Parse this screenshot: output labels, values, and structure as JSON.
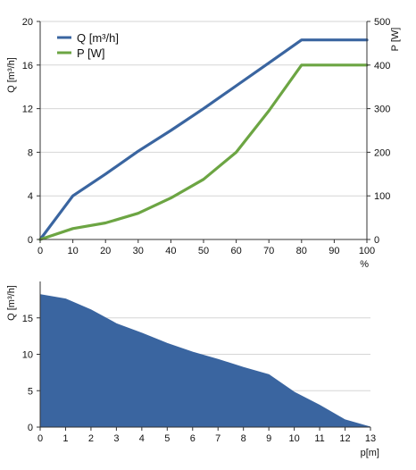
{
  "chart_data": [
    {
      "type": "line",
      "x": [
        0,
        10,
        20,
        30,
        40,
        50,
        60,
        70,
        80,
        90,
        100
      ],
      "xlim": [
        0,
        100
      ],
      "xticks": [
        "0",
        "10",
        "20",
        "30",
        "40",
        "50",
        "60",
        "70",
        "80",
        "90",
        "100"
      ],
      "xlabel": "%",
      "ylabel": "Q [m³/h]",
      "ylim": [
        0,
        20
      ],
      "yticks": [
        "0",
        "4",
        "8",
        "12",
        "16",
        "20"
      ],
      "y2label": "P [W]",
      "y2lim": [
        0,
        500
      ],
      "y2ticks": [
        "0",
        "100",
        "200",
        "300",
        "400",
        "500"
      ],
      "grid": "horizontal",
      "legend": "top-left",
      "series": [
        {
          "name": "Q [m³/h]",
          "axis": "left",
          "color": "#3a65a0",
          "values": [
            0,
            4,
            6,
            8.1,
            10,
            12,
            14.1,
            16.2,
            18.3,
            18.3,
            18.3
          ]
        },
        {
          "name": "P [W]",
          "axis": "right",
          "color": "#6ca543",
          "values": [
            0,
            25,
            38,
            60,
            95,
            138,
            200,
            295,
            400,
            400,
            400
          ]
        }
      ]
    },
    {
      "type": "area",
      "x": [
        0,
        1,
        2,
        3,
        4,
        5,
        6,
        7,
        8,
        9,
        10,
        11,
        12,
        13
      ],
      "xlim": [
        0,
        13
      ],
      "xticks": [
        "0",
        "1",
        "2",
        "3",
        "4",
        "5",
        "6",
        "7",
        "8",
        "9",
        "10",
        "11",
        "12",
        "13"
      ],
      "xlabel": "p[m]",
      "ylabel": "Q [m³/h]",
      "ylim": [
        0,
        20
      ],
      "yticks": [
        "0",
        "5",
        "10",
        "15"
      ],
      "grid": "horizontal",
      "color": "#3a65a0",
      "values": [
        18.2,
        17.6,
        16.1,
        14.2,
        12.9,
        11.5,
        10.3,
        9.3,
        8.2,
        7.2,
        4.8,
        3.0,
        1.0,
        0.0
      ]
    }
  ]
}
